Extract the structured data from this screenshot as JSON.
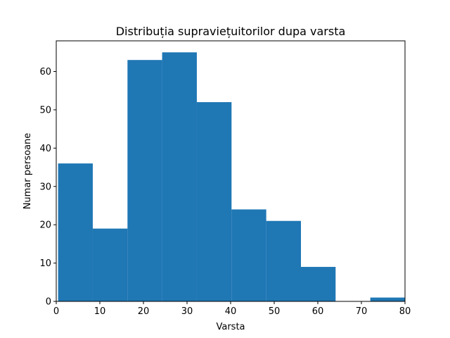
{
  "chart_data": {
    "type": "histogram",
    "title": "Distribuția supraviețuitorilor dupa varsta",
    "xlabel": "Varsta",
    "ylabel": "Numar persoane",
    "xlim": [
      0,
      80
    ],
    "ylim": [
      0,
      68
    ],
    "x_ticks": [
      0,
      10,
      20,
      30,
      40,
      50,
      60,
      70,
      80
    ],
    "y_ticks": [
      0,
      10,
      20,
      30,
      40,
      50,
      60
    ],
    "bins": [
      {
        "start": 0.42,
        "end": 8.38,
        "count": 36
      },
      {
        "start": 8.38,
        "end": 16.34,
        "count": 19
      },
      {
        "start": 16.34,
        "end": 24.29,
        "count": 63
      },
      {
        "start": 24.29,
        "end": 32.25,
        "count": 65
      },
      {
        "start": 32.25,
        "end": 40.21,
        "count": 52
      },
      {
        "start": 40.21,
        "end": 48.17,
        "count": 24
      },
      {
        "start": 48.17,
        "end": 56.13,
        "count": 21
      },
      {
        "start": 56.13,
        "end": 64.08,
        "count": 9
      },
      {
        "start": 64.08,
        "end": 72.04,
        "count": 0
      },
      {
        "start": 72.04,
        "end": 80.0,
        "count": 1
      }
    ],
    "bar_color": "#1f77b4",
    "grid": false
  }
}
